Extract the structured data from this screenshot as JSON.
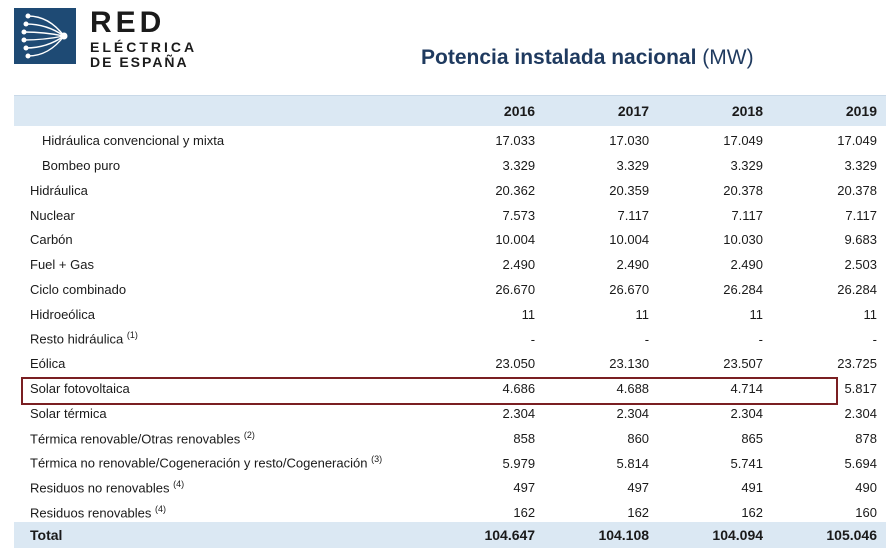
{
  "logo": {
    "line1": "RED",
    "line2": "ELÉCTRICA",
    "line3": "DE ESPAÑA"
  },
  "title": {
    "main": "Potencia instalada nacional",
    "unit": "(MW)"
  },
  "table": {
    "years": [
      "2016",
      "2017",
      "2018",
      "2019"
    ],
    "rows": [
      {
        "label": "Hidráulica convencional y mixta",
        "note": "",
        "values": [
          "17.033",
          "17.030",
          "17.049",
          "17.049"
        ]
      },
      {
        "label": "Bombeo puro",
        "note": "",
        "values": [
          "3.329",
          "3.329",
          "3.329",
          "3.329"
        ]
      },
      {
        "label": "Hidráulica",
        "note": "",
        "values": [
          "20.362",
          "20.359",
          "20.378",
          "20.378"
        ]
      },
      {
        "label": "Nuclear",
        "note": "",
        "values": [
          "7.573",
          "7.117",
          "7.117",
          "7.117"
        ]
      },
      {
        "label": "Carbón",
        "note": "",
        "values": [
          "10.004",
          "10.004",
          "10.030",
          "9.683"
        ]
      },
      {
        "label": "Fuel + Gas",
        "note": "",
        "values": [
          "2.490",
          "2.490",
          "2.490",
          "2.503"
        ]
      },
      {
        "label": "Ciclo combinado",
        "note": "",
        "values": [
          "26.670",
          "26.670",
          "26.284",
          "26.284"
        ]
      },
      {
        "label": "Hidroeólica",
        "note": "",
        "values": [
          "11",
          "11",
          "11",
          "11"
        ]
      },
      {
        "label": "Resto hidráulica",
        "note": "(1)",
        "values": [
          "-",
          "-",
          "-",
          "-"
        ]
      },
      {
        "label": "Eólica",
        "note": "",
        "values": [
          "23.050",
          "23.130",
          "23.507",
          "23.725"
        ]
      },
      {
        "label": "Solar fotovoltaica",
        "note": "",
        "values": [
          "4.686",
          "4.688",
          "4.714",
          "5.817"
        ]
      },
      {
        "label": "Solar térmica",
        "note": "",
        "values": [
          "2.304",
          "2.304",
          "2.304",
          "2.304"
        ]
      },
      {
        "label": "Térmica renovable/Otras renovables",
        "note": "(2)",
        "values": [
          "858",
          "860",
          "865",
          "878"
        ]
      },
      {
        "label": "Térmica no renovable/Cogeneración y resto/Cogeneración",
        "note": "(3)",
        "values": [
          "5.979",
          "5.814",
          "5.741",
          "5.694"
        ]
      },
      {
        "label": "Residuos no renovables",
        "note": "(4)",
        "values": [
          "497",
          "497",
          "491",
          "490"
        ]
      },
      {
        "label": "Residuos renovables",
        "note": "(4)",
        "values": [
          "162",
          "162",
          "162",
          "160"
        ]
      }
    ],
    "total": {
      "label": "Total",
      "values": [
        "104.647",
        "104.108",
        "104.094",
        "105.046"
      ]
    }
  },
  "colors": {
    "header_bg": "#dbe8f3",
    "highlight_border": "#7a1f22",
    "title": "#1f3a5f",
    "logo_blue": "#1e4a74"
  },
  "icons": {
    "logo": "red-electrica-network-logo-icon"
  }
}
